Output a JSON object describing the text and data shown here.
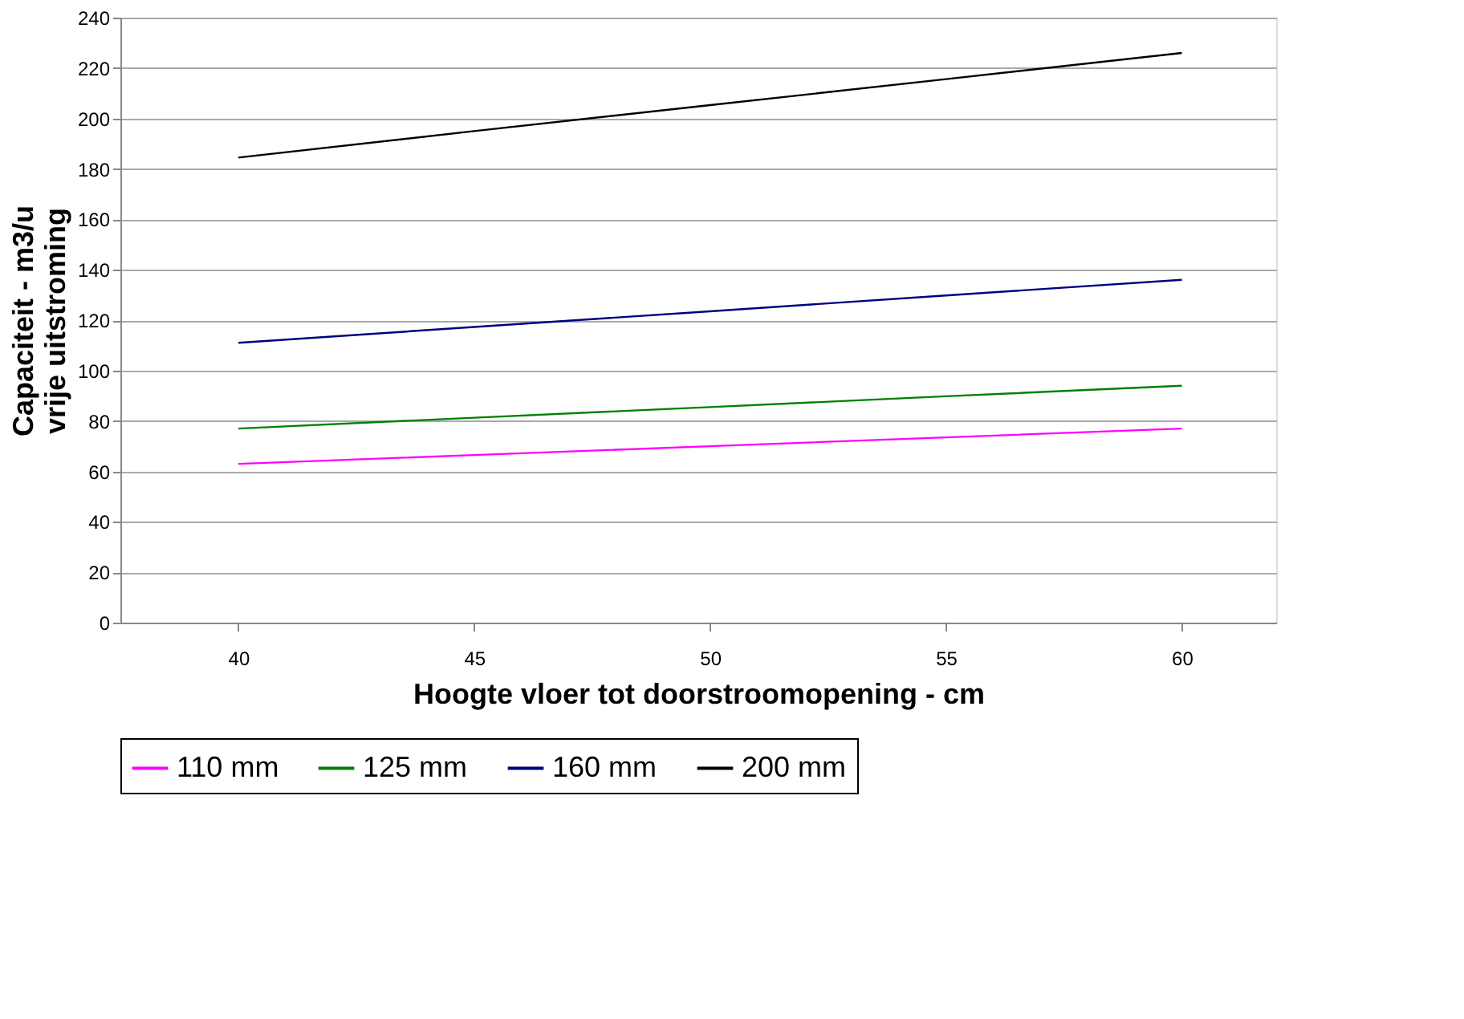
{
  "chart_data": {
    "type": "line",
    "xlabel": "Hoogte vloer tot doorstroomopening - cm",
    "ylabel": "Capaciteit - m3/u\nvrije uitstroming",
    "x": [
      40,
      45,
      50,
      55,
      60
    ],
    "series": [
      {
        "name": "110 mm",
        "color": "#ff00ff",
        "values": [
          63,
          66.5,
          70,
          73.5,
          77
        ]
      },
      {
        "name": "125 mm",
        "color": "#008000",
        "values": [
          77,
          81.3,
          85.5,
          89.8,
          94
        ]
      },
      {
        "name": "160 mm",
        "color": "#000080",
        "values": [
          111,
          117.3,
          123.5,
          129.8,
          136
        ]
      },
      {
        "name": "200 mm",
        "color": "#000000",
        "values": [
          184.5,
          195,
          205.3,
          215.6,
          226
        ]
      }
    ],
    "xlim": [
      37.5,
      62
    ],
    "xticks": [
      40,
      45,
      50,
      55,
      60
    ],
    "ylim": [
      0,
      240
    ],
    "yticks": [
      0,
      20,
      40,
      60,
      80,
      100,
      120,
      140,
      160,
      180,
      200,
      220,
      240
    ],
    "grid": "y",
    "legend": "bottom",
    "marker": "none",
    "line_style": "solid"
  }
}
